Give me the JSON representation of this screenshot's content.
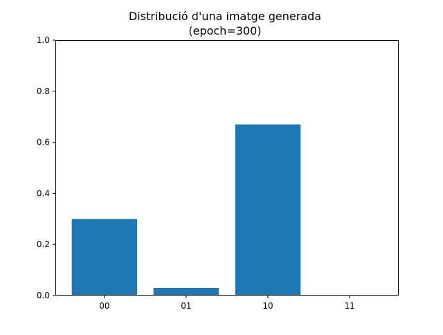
{
  "chart_data": {
    "type": "bar",
    "title": "Distribució d'una imatge generada",
    "subtitle": "(epoch=300)",
    "xlabel": "",
    "ylabel": "",
    "categories": [
      "00",
      "01",
      "10",
      "11"
    ],
    "values": [
      0.3,
      0.03,
      0.67,
      0.0
    ],
    "ylim": [
      0,
      1.0
    ],
    "yticks": [
      0.0,
      0.2,
      0.4,
      0.6,
      0.8,
      1.0
    ],
    "ytick_labels": [
      "0.0",
      "0.2",
      "0.4",
      "0.6",
      "0.8",
      "1.0"
    ],
    "grid": false,
    "legend": "none",
    "bar_color": "#1f77b4",
    "axis_color": "#000000"
  }
}
